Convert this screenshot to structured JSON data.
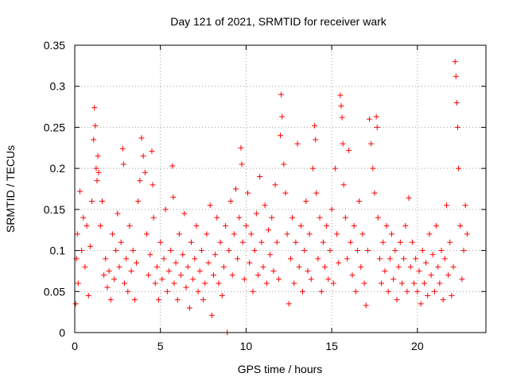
{
  "chart_data": {
    "type": "scatter",
    "title": "Day 121 of 2021, SRMTID for receiver wark",
    "xlabel": "GPS time / hours",
    "ylabel": "SRMTID / TECUs",
    "xlim": [
      0,
      24
    ],
    "ylim": [
      0,
      0.35
    ],
    "x_ticks": [
      0,
      5,
      10,
      15,
      20
    ],
    "y_ticks": [
      0,
      0.05,
      0.1,
      0.15,
      0.2,
      0.25,
      0.3,
      0.35
    ],
    "x_tick_labels": [
      "0",
      "5",
      "10",
      "15",
      "20"
    ],
    "y_tick_labels": [
      "0",
      "0.05",
      "0.1",
      "0.15",
      "0.2",
      "0.25",
      "0.3",
      "0.35"
    ],
    "grid": true,
    "marker": "+",
    "series_color": "#ff0000",
    "series": [
      {
        "name": "SRMTID",
        "points": [
          [
            0.05,
            0.035
          ],
          [
            0.1,
            0.09
          ],
          [
            0.15,
            0.12
          ],
          [
            0.2,
            0.06
          ],
          [
            0.3,
            0.172
          ],
          [
            0.4,
            0.1
          ],
          [
            0.5,
            0.14
          ],
          [
            0.6,
            0.08
          ],
          [
            0.7,
            0.13
          ],
          [
            0.8,
            0.045
          ],
          [
            0.9,
            0.105
          ],
          [
            1.0,
            0.16
          ],
          [
            1.1,
            0.235
          ],
          [
            1.15,
            0.274
          ],
          [
            1.2,
            0.252
          ],
          [
            1.25,
            0.2
          ],
          [
            1.3,
            0.185
          ],
          [
            1.35,
            0.215
          ],
          [
            1.4,
            0.195
          ],
          [
            1.5,
            0.13
          ],
          [
            1.6,
            0.16
          ],
          [
            1.7,
            0.07
          ],
          [
            1.8,
            0.09
          ],
          [
            1.9,
            0.055
          ],
          [
            2.0,
            0.075
          ],
          [
            2.1,
            0.04
          ],
          [
            2.2,
            0.12
          ],
          [
            2.3,
            0.065
          ],
          [
            2.4,
            0.1
          ],
          [
            2.5,
            0.145
          ],
          [
            2.6,
            0.08
          ],
          [
            2.7,
            0.11
          ],
          [
            2.8,
            0.224
          ],
          [
            2.85,
            0.205
          ],
          [
            2.9,
            0.06
          ],
          [
            3.0,
            0.09
          ],
          [
            3.1,
            0.05
          ],
          [
            3.2,
            0.13
          ],
          [
            3.3,
            0.075
          ],
          [
            3.4,
            0.1
          ],
          [
            3.5,
            0.04
          ],
          [
            3.6,
            0.085
          ],
          [
            3.7,
            0.16
          ],
          [
            3.8,
            0.185
          ],
          [
            3.9,
            0.237
          ],
          [
            4.0,
            0.215
          ],
          [
            4.1,
            0.195
          ],
          [
            4.2,
            0.12
          ],
          [
            4.3,
            0.07
          ],
          [
            4.4,
            0.095
          ],
          [
            4.5,
            0.221
          ],
          [
            4.55,
            0.18
          ],
          [
            4.6,
            0.14
          ],
          [
            4.7,
            0.06
          ],
          [
            4.8,
            0.08
          ],
          [
            4.9,
            0.04
          ],
          [
            5.0,
            0.11
          ],
          [
            5.1,
            0.065
          ],
          [
            5.2,
            0.09
          ],
          [
            5.3,
            0.15
          ],
          [
            5.4,
            0.05
          ],
          [
            5.5,
            0.075
          ],
          [
            5.6,
            0.1
          ],
          [
            5.7,
            0.203
          ],
          [
            5.75,
            0.165
          ],
          [
            5.8,
            0.06
          ],
          [
            5.9,
            0.085
          ],
          [
            6.0,
            0.04
          ],
          [
            6.1,
            0.12
          ],
          [
            6.2,
            0.07
          ],
          [
            6.3,
            0.095
          ],
          [
            6.4,
            0.145
          ],
          [
            6.5,
            0.055
          ],
          [
            6.6,
            0.08
          ],
          [
            6.7,
            0.03
          ],
          [
            6.8,
            0.11
          ],
          [
            6.9,
            0.065
          ],
          [
            7.0,
            0.09
          ],
          [
            7.1,
            0.13
          ],
          [
            7.2,
            0.05
          ],
          [
            7.3,
            0.075
          ],
          [
            7.4,
            0.1
          ],
          [
            7.5,
            0.04
          ],
          [
            7.6,
            0.06
          ],
          [
            7.7,
            0.12
          ],
          [
            7.8,
            0.085
          ],
          [
            7.9,
            0.155
          ],
          [
            8.0,
            0.021
          ],
          [
            8.1,
            0.07
          ],
          [
            8.2,
            0.095
          ],
          [
            8.3,
            0.14
          ],
          [
            8.4,
            0.06
          ],
          [
            8.5,
            0.11
          ],
          [
            8.6,
            0.045
          ],
          [
            8.7,
            0.08
          ],
          [
            8.8,
            0.13
          ],
          [
            8.9,
            0.0
          ],
          [
            9.0,
            0.1
          ],
          [
            9.1,
            0.16
          ],
          [
            9.2,
            0.07
          ],
          [
            9.3,
            0.12
          ],
          [
            9.4,
            0.175
          ],
          [
            9.5,
            0.09
          ],
          [
            9.6,
            0.14
          ],
          [
            9.7,
            0.225
          ],
          [
            9.75,
            0.205
          ],
          [
            9.8,
            0.11
          ],
          [
            9.9,
            0.065
          ],
          [
            10.0,
            0.13
          ],
          [
            10.1,
            0.17
          ],
          [
            10.2,
            0.085
          ],
          [
            10.3,
            0.12
          ],
          [
            10.4,
            0.05
          ],
          [
            10.5,
            0.1
          ],
          [
            10.6,
            0.145
          ],
          [
            10.7,
            0.07
          ],
          [
            10.8,
            0.19
          ],
          [
            10.9,
            0.11
          ],
          [
            11.0,
            0.08
          ],
          [
            11.1,
            0.155
          ],
          [
            11.2,
            0.06
          ],
          [
            11.3,
            0.125
          ],
          [
            11.4,
            0.095
          ],
          [
            11.5,
            0.14
          ],
          [
            11.6,
            0.075
          ],
          [
            11.7,
            0.18
          ],
          [
            11.8,
            0.11
          ],
          [
            11.9,
            0.065
          ],
          [
            12.0,
            0.24
          ],
          [
            12.05,
            0.29
          ],
          [
            12.1,
            0.263
          ],
          [
            12.2,
            0.205
          ],
          [
            12.3,
            0.17
          ],
          [
            12.4,
            0.12
          ],
          [
            12.5,
            0.035
          ],
          [
            12.6,
            0.09
          ],
          [
            12.7,
            0.14
          ],
          [
            12.8,
            0.06
          ],
          [
            12.9,
            0.11
          ],
          [
            13.0,
            0.23
          ],
          [
            13.1,
            0.08
          ],
          [
            13.2,
            0.13
          ],
          [
            13.3,
            0.05
          ],
          [
            13.4,
            0.1
          ],
          [
            13.5,
            0.16
          ],
          [
            13.6,
            0.075
          ],
          [
            13.7,
            0.12
          ],
          [
            13.8,
            0.065
          ],
          [
            13.9,
            0.2
          ],
          [
            14.0,
            0.252
          ],
          [
            14.05,
            0.235
          ],
          [
            14.1,
            0.17
          ],
          [
            14.2,
            0.09
          ],
          [
            14.3,
            0.14
          ],
          [
            14.4,
            0.05
          ],
          [
            14.5,
            0.11
          ],
          [
            14.6,
            0.08
          ],
          [
            14.7,
            0.13
          ],
          [
            14.8,
            0.065
          ],
          [
            14.9,
            0.1
          ],
          [
            15.0,
            0.15
          ],
          [
            15.1,
            0.06
          ],
          [
            15.2,
            0.2
          ],
          [
            15.3,
            0.12
          ],
          [
            15.4,
            0.085
          ],
          [
            15.5,
            0.289
          ],
          [
            15.55,
            0.276
          ],
          [
            15.6,
            0.262
          ],
          [
            15.65,
            0.23
          ],
          [
            15.7,
            0.18
          ],
          [
            15.8,
            0.14
          ],
          [
            15.9,
            0.09
          ],
          [
            16.0,
            0.222
          ],
          [
            16.1,
            0.11
          ],
          [
            16.2,
            0.07
          ],
          [
            16.3,
            0.13
          ],
          [
            16.4,
            0.05
          ],
          [
            16.5,
            0.1
          ],
          [
            16.6,
            0.16
          ],
          [
            16.7,
            0.08
          ],
          [
            16.8,
            0.12
          ],
          [
            16.9,
            0.06
          ],
          [
            17.0,
            0.033
          ],
          [
            17.1,
            0.1
          ],
          [
            17.2,
            0.26
          ],
          [
            17.3,
            0.23
          ],
          [
            17.4,
            0.2
          ],
          [
            17.5,
            0.17
          ],
          [
            17.6,
            0.263
          ],
          [
            17.65,
            0.25
          ],
          [
            17.7,
            0.14
          ],
          [
            17.8,
            0.09
          ],
          [
            17.9,
            0.06
          ],
          [
            18.0,
            0.11
          ],
          [
            18.1,
            0.075
          ],
          [
            18.2,
            0.13
          ],
          [
            18.3,
            0.05
          ],
          [
            18.4,
            0.09
          ],
          [
            18.5,
            0.12
          ],
          [
            18.6,
            0.065
          ],
          [
            18.7,
            0.1
          ],
          [
            18.8,
            0.04
          ],
          [
            18.9,
            0.08
          ],
          [
            19.0,
            0.11
          ],
          [
            19.1,
            0.06
          ],
          [
            19.2,
            0.09
          ],
          [
            19.3,
            0.13
          ],
          [
            19.4,
            0.05
          ],
          [
            19.5,
            0.164
          ],
          [
            19.6,
            0.08
          ],
          [
            19.7,
            0.11
          ],
          [
            19.8,
            0.06
          ],
          [
            19.9,
            0.09
          ],
          [
            20.0,
            0.05
          ],
          [
            20.1,
            0.075
          ],
          [
            20.2,
            0.035
          ],
          [
            20.3,
            0.1
          ],
          [
            20.4,
            0.06
          ],
          [
            20.5,
            0.085
          ],
          [
            20.6,
            0.045
          ],
          [
            20.7,
            0.12
          ],
          [
            20.8,
            0.07
          ],
          [
            20.9,
            0.095
          ],
          [
            21.0,
            0.05
          ],
          [
            21.1,
            0.13
          ],
          [
            21.2,
            0.08
          ],
          [
            21.3,
            0.06
          ],
          [
            21.4,
            0.1
          ],
          [
            21.5,
            0.04
          ],
          [
            21.6,
            0.09
          ],
          [
            21.7,
            0.155
          ],
          [
            21.8,
            0.07
          ],
          [
            21.9,
            0.11
          ],
          [
            22.0,
            0.045
          ],
          [
            22.1,
            0.08
          ],
          [
            22.2,
            0.33
          ],
          [
            22.25,
            0.312
          ],
          [
            22.3,
            0.28
          ],
          [
            22.35,
            0.25
          ],
          [
            22.4,
            0.2
          ],
          [
            22.5,
            0.13
          ],
          [
            22.6,
            0.065
          ],
          [
            22.7,
            0.1
          ],
          [
            22.8,
            0.155
          ],
          [
            22.9,
            0.12
          ]
        ]
      }
    ]
  }
}
